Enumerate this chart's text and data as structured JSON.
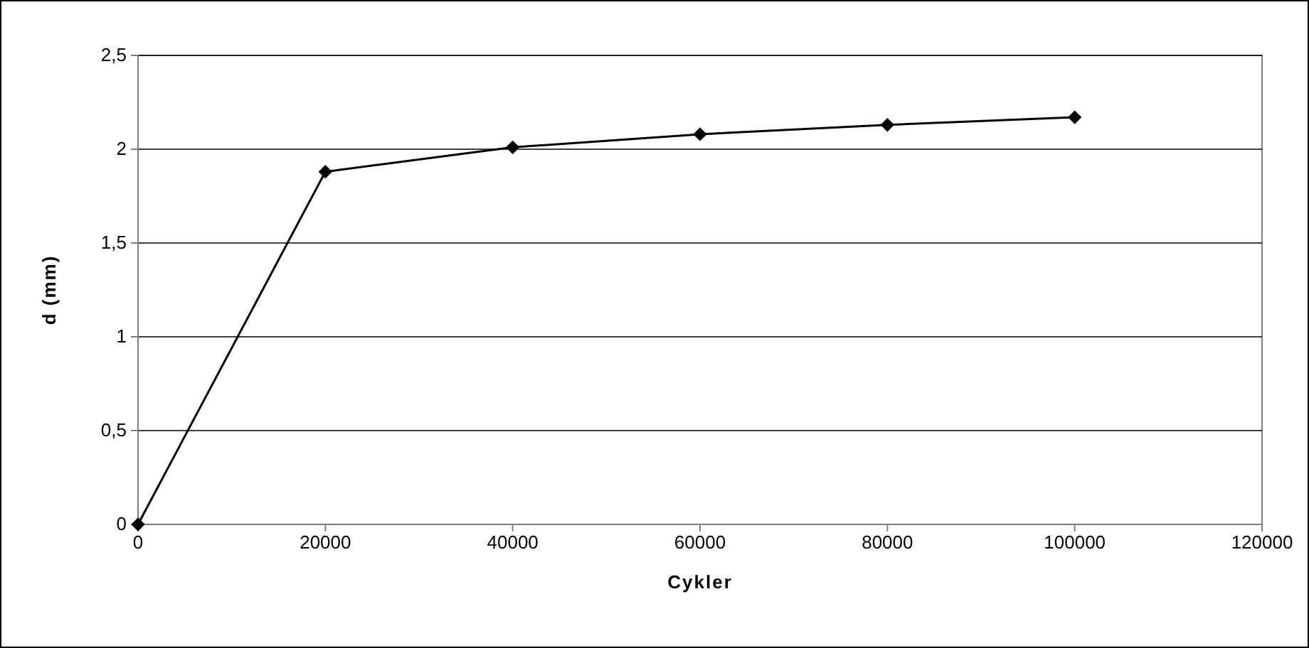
{
  "chart_data": {
    "type": "line",
    "xlabel": "Cykler",
    "ylabel": "d (mm)",
    "x": [
      0,
      20000,
      40000,
      60000,
      80000,
      100000
    ],
    "series": [
      {
        "color": "#000000",
        "values": [
          0,
          1.88,
          2.01,
          2.08,
          2.13,
          2.17
        ]
      }
    ],
    "xlim": [
      0,
      120000
    ],
    "xticks": [
      0,
      20000,
      40000,
      60000,
      80000,
      100000,
      120000
    ],
    "ylim": [
      0,
      2.5
    ],
    "yticks": [
      0,
      {
        "value": 0.5,
        "label": "0,5"
      },
      1,
      {
        "value": 1.5,
        "label": "1,5"
      },
      2,
      {
        "value": 2.5,
        "label": "2,5"
      }
    ],
    "grid": "y",
    "marker": "diamond",
    "line_style": "solid"
  }
}
